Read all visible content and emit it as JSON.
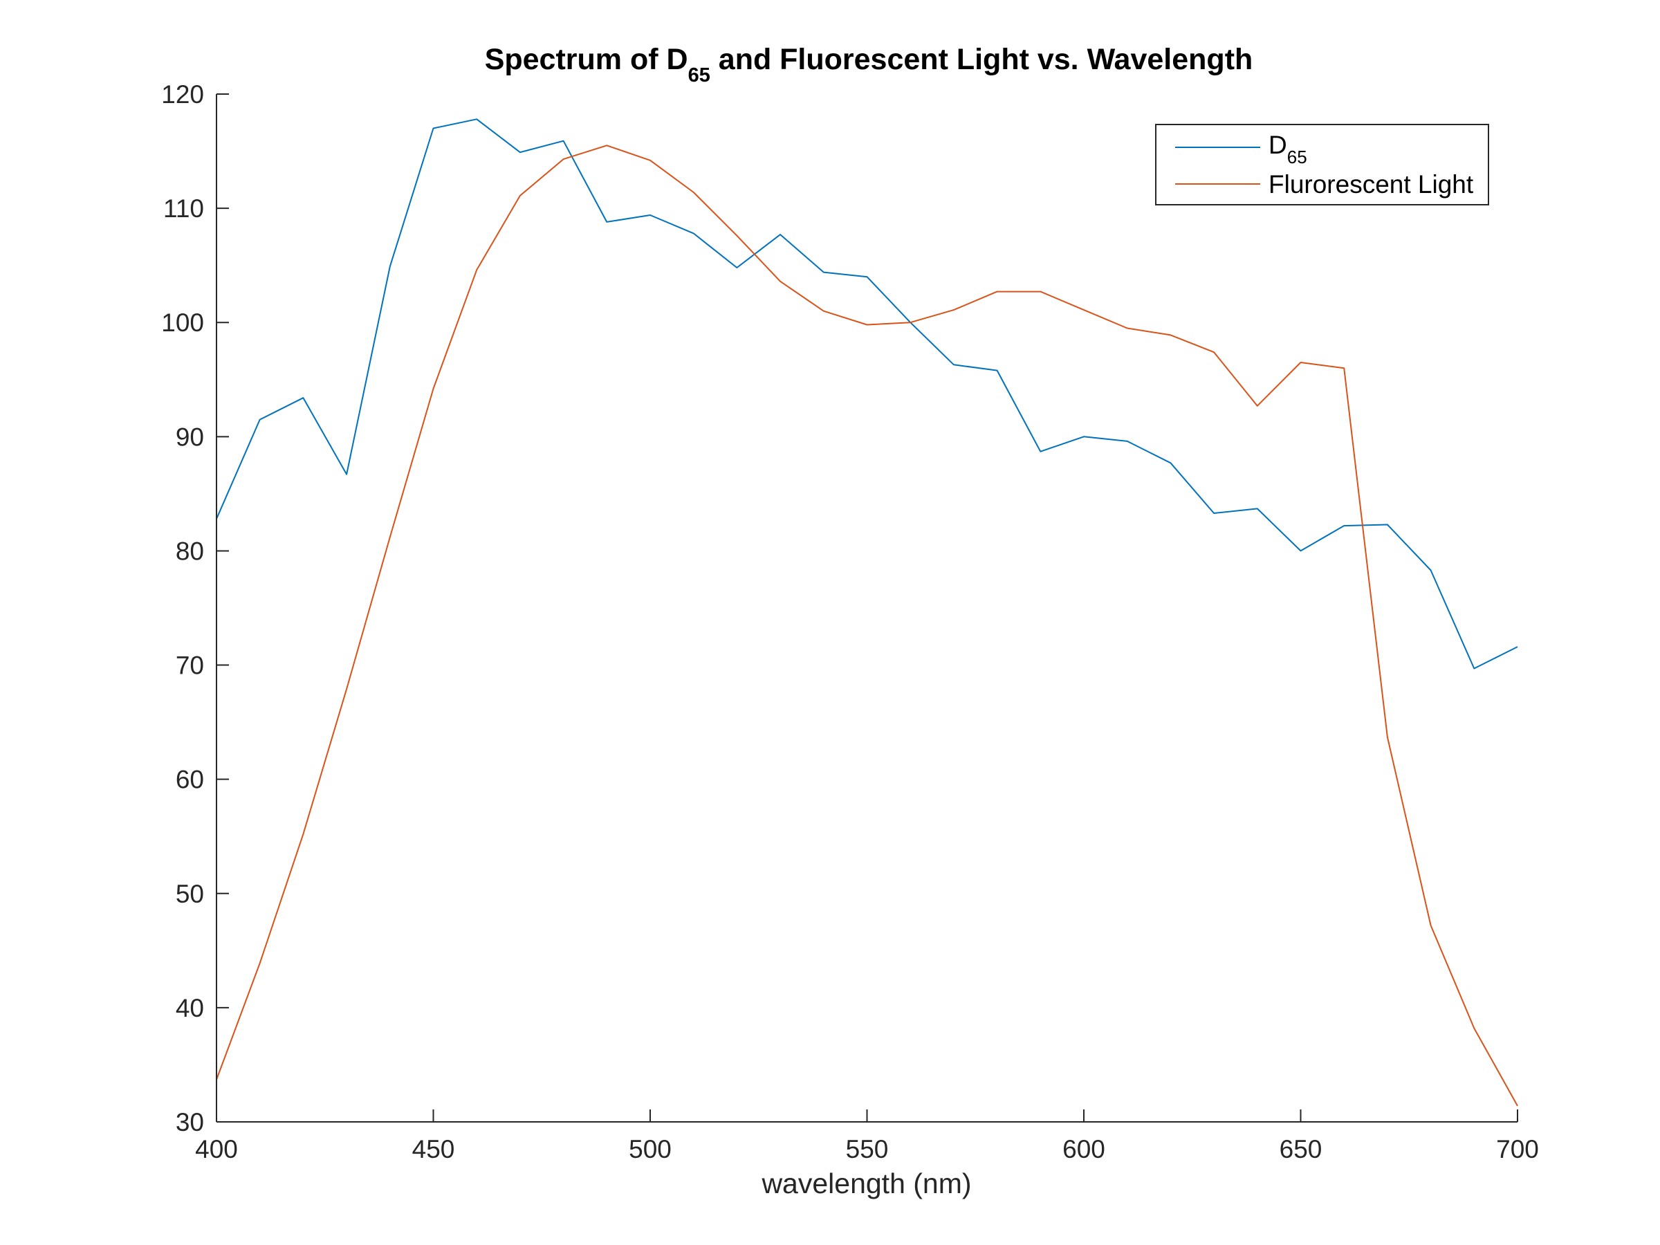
{
  "chart_data": {
    "type": "line",
    "title": "Spectrum of D",
    "title_subscript": "65",
    "title_suffix": " and Fluorescent Light vs. Wavelength",
    "xlabel": "wavelength (nm)",
    "ylabel": "",
    "xlim": [
      400,
      700
    ],
    "ylim": [
      30,
      120
    ],
    "xticks": [
      400,
      450,
      500,
      550,
      600,
      650,
      700
    ],
    "yticks": [
      30,
      40,
      50,
      60,
      70,
      80,
      90,
      100,
      110,
      120
    ],
    "grid": false,
    "legend_position": "top-right",
    "x": [
      400,
      410,
      420,
      430,
      440,
      450,
      460,
      470,
      480,
      490,
      500,
      510,
      520,
      530,
      540,
      550,
      560,
      570,
      580,
      590,
      600,
      610,
      620,
      630,
      640,
      650,
      660,
      670,
      680,
      690,
      700
    ],
    "series": [
      {
        "name": "D",
        "name_subscript": "65",
        "color": "#0072BD",
        "values": [
          82.8,
          91.5,
          93.4,
          86.7,
          104.9,
          117.0,
          117.8,
          114.9,
          115.9,
          108.8,
          109.4,
          107.8,
          104.8,
          107.7,
          104.4,
          104.0,
          100.0,
          96.3,
          95.8,
          88.7,
          90.0,
          89.6,
          87.7,
          83.3,
          83.7,
          80.0,
          82.2,
          82.3,
          78.3,
          69.7,
          71.6
        ]
      },
      {
        "name": "Flurorescent Light",
        "name_subscript": "",
        "color": "#D95319",
        "values": [
          33.7,
          43.9,
          55.2,
          67.9,
          81.2,
          94.2,
          104.6,
          111.1,
          114.3,
          115.5,
          114.2,
          111.4,
          107.6,
          103.6,
          101.0,
          99.8,
          100.0,
          101.1,
          102.7,
          102.7,
          101.1,
          99.5,
          98.9,
          97.4,
          92.7,
          96.5,
          96.0,
          63.7,
          47.2,
          38.2,
          31.4
        ]
      }
    ]
  }
}
